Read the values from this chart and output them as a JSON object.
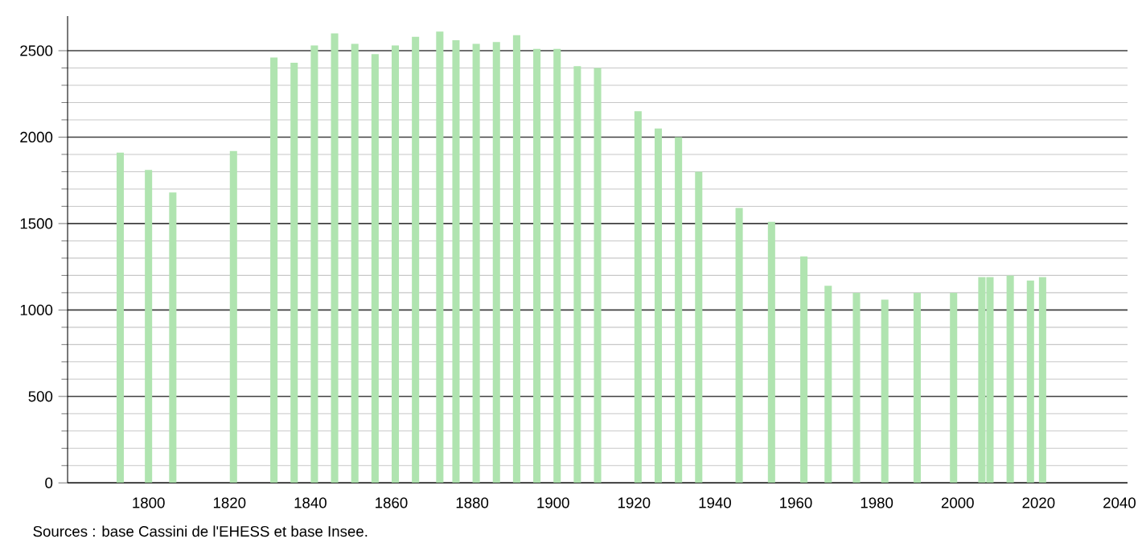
{
  "chart_data": {
    "type": "bar",
    "color": "#b0e4b0",
    "x": [
      1793,
      1800,
      1806,
      1821,
      1831,
      1836,
      1841,
      1846,
      1851,
      1856,
      1861,
      1866,
      1872,
      1876,
      1881,
      1886,
      1891,
      1896,
      1901,
      1906,
      1911,
      1921,
      1926,
      1931,
      1936,
      1946,
      1954,
      1962,
      1968,
      1975,
      1982,
      1990,
      1999,
      2006,
      2008,
      2013,
      2018,
      2021
    ],
    "values": [
      1910,
      1810,
      1680,
      1920,
      2460,
      2430,
      2530,
      2600,
      2540,
      2480,
      2530,
      2580,
      2610,
      2560,
      2540,
      2550,
      2590,
      2510,
      2510,
      2410,
      2400,
      2150,
      2050,
      2000,
      1800,
      1590,
      1510,
      1310,
      1140,
      1100,
      1060,
      1100,
      1100,
      1190,
      1190,
      1200,
      1170,
      1190
    ],
    "xlim": [
      1780,
      2042
    ],
    "ylim": [
      0,
      2700
    ],
    "xticks": [
      1800,
      1820,
      1840,
      1860,
      1880,
      1900,
      1920,
      1940,
      1960,
      1980,
      2000,
      2020,
      2040
    ],
    "yticks": [
      0,
      500,
      1000,
      1500,
      2000,
      2500
    ],
    "grid": "y",
    "annotations": [
      "Sources : base Cassini de l'EHESS et base Insee."
    ]
  }
}
